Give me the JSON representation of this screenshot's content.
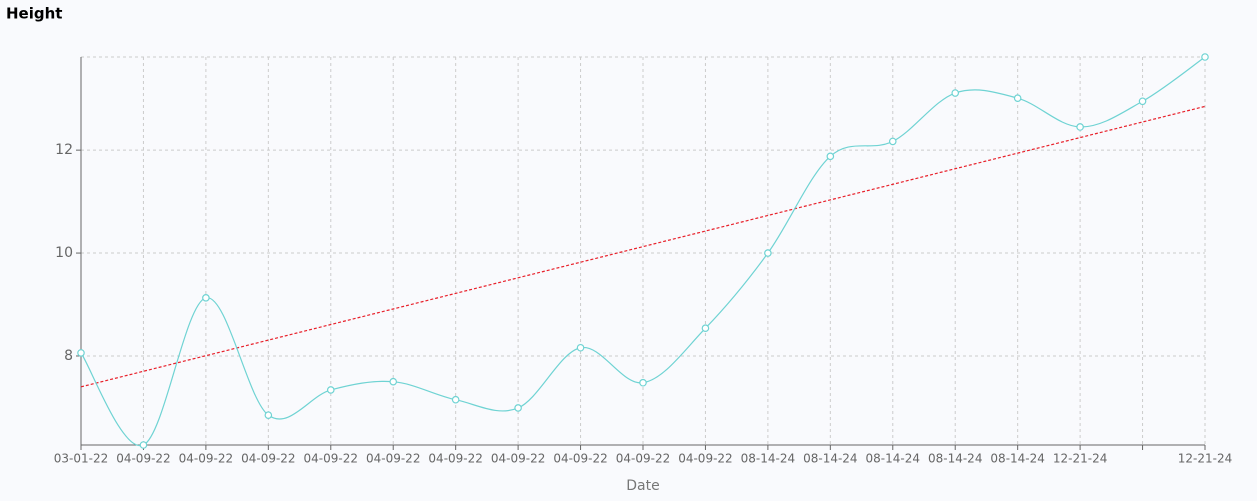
{
  "chart_data": {
    "type": "line",
    "title": "Height",
    "x_label": "Date",
    "categories": [
      "03-01-22",
      "04-09-22",
      "04-09-22",
      "04-09-22",
      "04-09-22",
      "04-09-22",
      "04-09-22",
      "04-09-22",
      "04-09-22",
      "04-09-22",
      "04-09-22",
      "08-14-24",
      "08-14-24",
      "08-14-24",
      "08-14-24",
      "08-14-24",
      "12-21-24",
      null,
      "12-21-24"
    ],
    "series": [
      {
        "color": "#6fd3d3",
        "values": [
          8.06,
          6.27,
          9.13,
          6.85,
          7.34,
          7.5,
          7.15,
          6.99,
          8.16,
          7.48,
          8.54,
          10.0,
          11.88,
          12.17,
          13.11,
          13.01,
          12.45,
          12.95,
          13.81
        ]
      }
    ],
    "trendline": {
      "color": "#e8202a",
      "values": [
        7.4,
        12.85
      ]
    },
    "ylim": [
      6.27,
      13.81
    ],
    "yticks": [
      8,
      10,
      12
    ],
    "grid": true
  }
}
